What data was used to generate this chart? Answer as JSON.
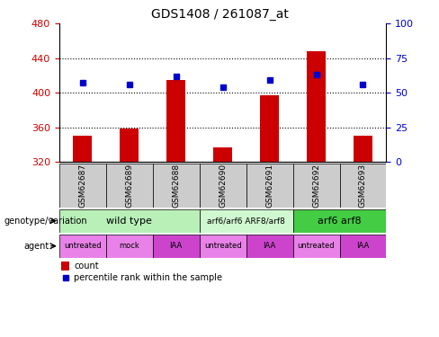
{
  "title": "GDS1408 / 261087_at",
  "samples": [
    "GSM62687",
    "GSM62689",
    "GSM62688",
    "GSM62690",
    "GSM62691",
    "GSM62692",
    "GSM62693"
  ],
  "bar_values": [
    350,
    358,
    415,
    337,
    397,
    448,
    350
  ],
  "bar_baseline": 320,
  "percentile_values": [
    57,
    56,
    62,
    54,
    59,
    63,
    56
  ],
  "ylim_left": [
    320,
    480
  ],
  "ylim_right": [
    0,
    100
  ],
  "yticks_left": [
    320,
    360,
    400,
    440,
    480
  ],
  "yticks_right": [
    0,
    25,
    50,
    75,
    100
  ],
  "bar_color": "#cc0000",
  "dot_color": "#0000cc",
  "genotype_groups": [
    {
      "label": "wild type",
      "start": 0,
      "end": 3,
      "color": "#b8f0b8",
      "fontsize": 8
    },
    {
      "label": "arf6/arf6 ARF8/arf8",
      "start": 3,
      "end": 5,
      "color": "#d0f8d0",
      "fontsize": 6.5
    },
    {
      "label": "arf6 arf8",
      "start": 5,
      "end": 7,
      "color": "#44cc44",
      "fontsize": 8
    }
  ],
  "agent_labels": [
    "untreated",
    "mock",
    "IAA",
    "untreated",
    "IAA",
    "untreated",
    "IAA"
  ],
  "agent_colors": [
    "#e882e8",
    "#e882e8",
    "#cc44cc",
    "#e882e8",
    "#cc44cc",
    "#e882e8",
    "#cc44cc"
  ],
  "sample_box_color": "#cccccc",
  "bar_width": 0.4,
  "xlabel_color": "#cc0000",
  "ylabel_right_color": "#0000cc",
  "legend_count_color": "#cc0000",
  "legend_dot_color": "#0000cc"
}
